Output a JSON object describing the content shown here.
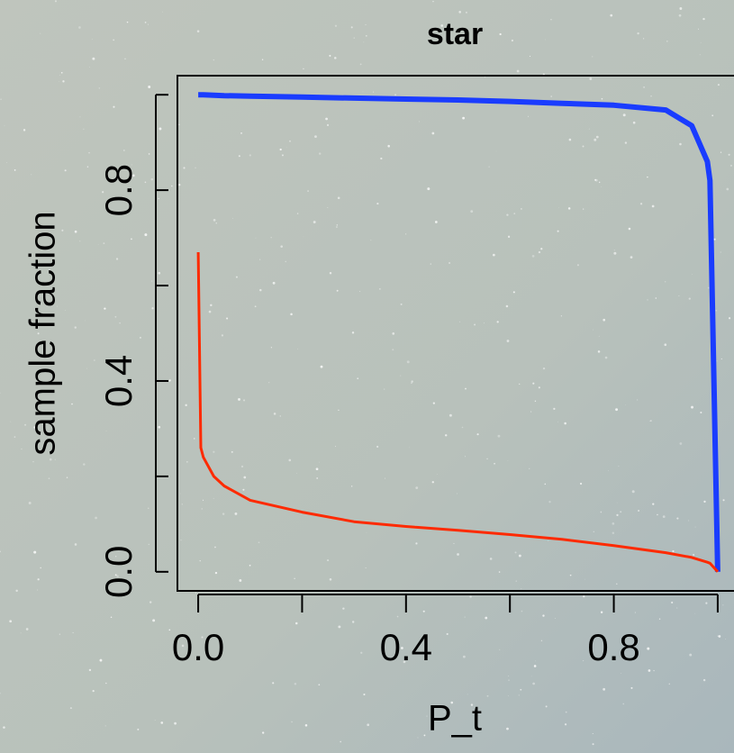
{
  "chart_data": {
    "type": "line",
    "title": "star",
    "xlabel": "P_t",
    "ylabel": "sample fraction",
    "x": [
      0,
      0.005,
      0.01,
      0.03,
      0.05,
      0.1,
      0.2,
      0.3,
      0.4,
      0.5,
      0.6,
      0.7,
      0.8,
      0.9,
      0.95,
      0.98,
      0.985,
      1.0
    ],
    "series": [
      {
        "color": "#1a3cff",
        "width": 6,
        "values": [
          1.0,
          1.0,
          1.0,
          0.999,
          0.998,
          0.997,
          0.995,
          0.993,
          0.991,
          0.989,
          0.986,
          0.982,
          0.978,
          0.968,
          0.935,
          0.86,
          0.82,
          0.0
        ]
      },
      {
        "color": "#ff2a00",
        "width": 3,
        "values": [
          0.67,
          0.26,
          0.24,
          0.2,
          0.18,
          0.15,
          0.125,
          0.105,
          0.095,
          0.087,
          0.078,
          0.068,
          0.055,
          0.04,
          0.03,
          0.02,
          0.018,
          0.0
        ]
      }
    ],
    "xlim": [
      -0.04,
      1.04
    ],
    "ylim": [
      -0.04,
      1.04
    ],
    "xticks": [
      {
        "value": 0,
        "label": "0.0"
      },
      {
        "value": 0.4,
        "label": "0.4"
      },
      {
        "value": 0.8,
        "label": "0.8"
      }
    ],
    "xminor": [
      0.2,
      0.6,
      1.0
    ],
    "yticks": [
      {
        "value": 0,
        "label": "0.0"
      },
      {
        "value": 0.4,
        "label": "0.4"
      },
      {
        "value": 0.8,
        "label": "0.8"
      }
    ],
    "yminor": [
      0.2,
      0.6,
      1.0
    ]
  }
}
